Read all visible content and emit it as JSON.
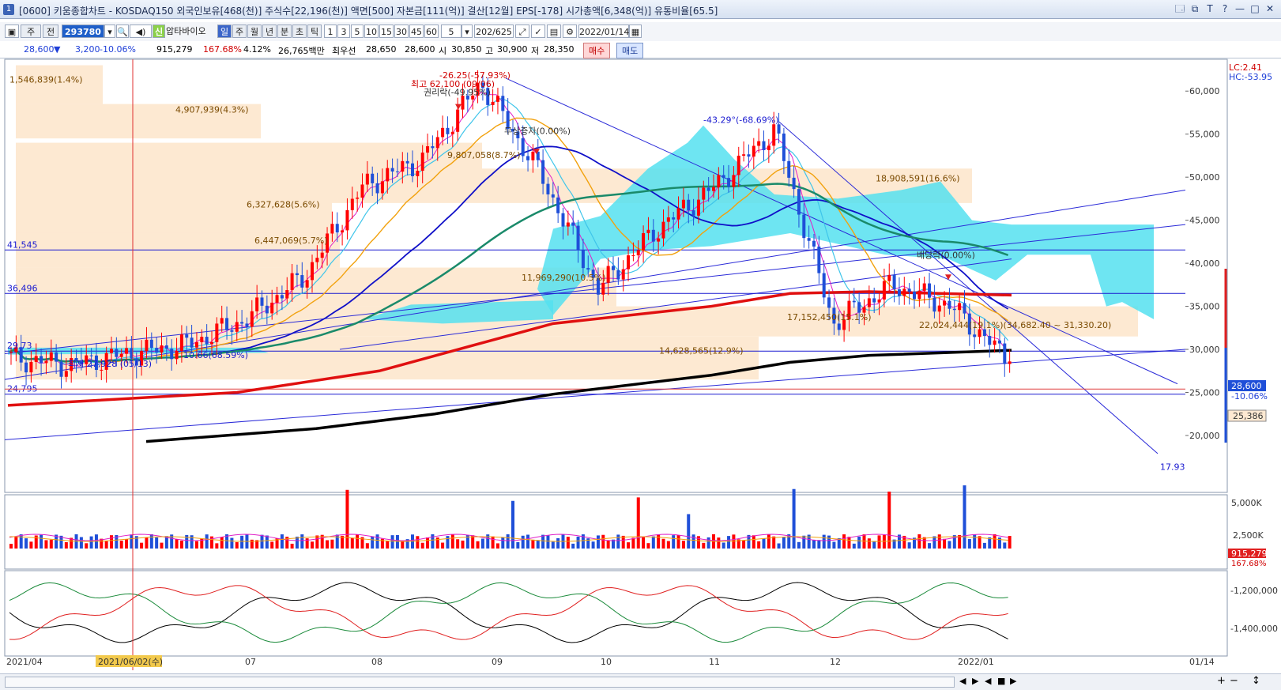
{
  "window": {
    "icon_label": "1",
    "title": "[0600] 키움종합차트 - KOSDAQ150 외국인보유[468(천)] 주식수[22,196(천)] 액면[500] 자본금[111(억)] 결산[12월] EPS[-178] 시가총액[6,348(억)] 유통비율[65.5]",
    "buttons": [
      "🗔",
      "⧉",
      "T",
      "?",
      "—",
      "□",
      "✕"
    ]
  },
  "toolbar": {
    "period_label": "주",
    "prev_label": "전",
    "stock_code": "293780",
    "stock_name": "압타바이오",
    "new_badge": "신",
    "main_tabs": [
      "일",
      "주",
      "월",
      "년",
      "분",
      "초",
      "틱"
    ],
    "minute_options": [
      "1",
      "3",
      "5",
      "10",
      "15",
      "30",
      "45",
      "60"
    ],
    "minute_count": "5",
    "page_count": "202/625",
    "date": "2022/01/14"
  },
  "info": {
    "price": "28,600",
    "change": "3,200",
    "change_pct": "-10.06%",
    "volume": "915,279",
    "volume_pct": "167.68%",
    "turnover_pct": "4.12%",
    "amount": "26,765백만",
    "best_bid_label": "최우선",
    "best_bid": "28,650",
    "best_ask": "28,600",
    "open_label": "시",
    "open": "30,850",
    "high_label": "고",
    "high": "30,900",
    "low_label": "저",
    "low": "28,350",
    "buy_label": "매수",
    "sell_label": "매도"
  },
  "colors": {
    "up": "#ff0000",
    "down": "#1f4fd8",
    "cloud": "#55e0f0",
    "box": "#fde9d2",
    "ma5": "#e020c8",
    "ma10": "#3fc5ea",
    "ma20": "#f2a20e",
    "ma60": "#1010c8",
    "ma120": "#1a8a6a",
    "ma240": "#e01010",
    "ma480": "#000000"
  },
  "chart_data": {
    "type": "candlestick",
    "period": "daily",
    "x_labels": [
      "2021/04",
      "2021/06/02(수)",
      "07",
      "08",
      "09",
      "10",
      "11",
      "12",
      "2022/01",
      "01/14"
    ],
    "y_ticks": [
      "60,000",
      "55,000",
      "50,000",
      "45,000",
      "40,000",
      "35,000",
      "30,000",
      "25,000",
      "20,000"
    ],
    "ylim": [
      15500,
      62500
    ],
    "scale_info": [
      "LC:2.41",
      "HC:-53.95"
    ],
    "current_price": "28,600",
    "current_change": "-10.06%",
    "marker_price": "25,386",
    "hlines": [
      {
        "label": "41,545",
        "value": 41545
      },
      {
        "label": "36,496",
        "value": 36496
      },
      {
        "label": "24,795",
        "value": 24795
      }
    ],
    "annotations": [
      {
        "text": "최고 62,100 (09/06)"
      },
      {
        "text": "-26.25(-57.93%)"
      },
      {
        "text": "권리락(-49.95%)"
      },
      {
        "text": "무상증자(0.00%)"
      },
      {
        "text": "-43.29°(-68.69%)"
      },
      {
        "text": "배당락(0.00%)"
      },
      {
        "text": "최저 27,928 (05/13)"
      },
      {
        "text": "10.66(68.59%)"
      },
      {
        "text": "22,024,444(19.1%)(34,682.40 ~ 31,330.20)"
      },
      {
        "text": "17.93"
      },
      {
        "text": "29.73"
      }
    ],
    "volume_profile": [
      {
        "label": "1,546,839(1.4%)"
      },
      {
        "label": "4,907,939(4.3%)"
      },
      {
        "label": "9,807,058(8.7%)"
      },
      {
        "label": "6,327,628(5.6%)"
      },
      {
        "label": "6,447,069(5.7%)"
      },
      {
        "label": "11,969,290(10.5%)"
      },
      {
        "label": "17,152,450(15.1%)"
      },
      {
        "label": "18,908,591(16.6%)"
      },
      {
        "label": "14,628,565(12.9%)"
      }
    ],
    "volume_panel": {
      "y_ticks": [
        "5,000K",
        "2,500K"
      ],
      "current": "915,279",
      "current_pct": "167.68%"
    },
    "investor_panel": {
      "y_ticks": [
        "-1,200,000",
        "-1,400,000"
      ]
    },
    "price_path": [
      {
        "date": "2021/04",
        "close": 29000
      },
      {
        "date": "2021/05/13",
        "close": 28200
      },
      {
        "date": "2021/06/02",
        "close": 29500
      },
      {
        "date": "2021/07",
        "close": 30500
      },
      {
        "date": "2021/07/15",
        "close": 33500
      },
      {
        "date": "2021/08",
        "close": 38500
      },
      {
        "date": "2021/08/10",
        "close": 49000
      },
      {
        "date": "2021/08/20",
        "close": 52000
      },
      {
        "date": "2021/09/06",
        "close": 61000
      },
      {
        "date": "2021/09/20",
        "close": 50500
      },
      {
        "date": "2021/10",
        "close": 37000
      },
      {
        "date": "2021/10/20",
        "close": 44000
      },
      {
        "date": "2021/11",
        "close": 49000
      },
      {
        "date": "2021/11/20",
        "close": 55500
      },
      {
        "date": "2021/12",
        "close": 33000
      },
      {
        "date": "2021/12/20",
        "close": 37500
      },
      {
        "date": "2022/01",
        "close": 35000
      },
      {
        "date": "2022/01/14",
        "close": 28600
      }
    ]
  },
  "bottombar": {
    "controls": [
      "◀",
      "▶",
      "◀",
      "■",
      "▶",
      "+",
      "−",
      "↕"
    ]
  }
}
